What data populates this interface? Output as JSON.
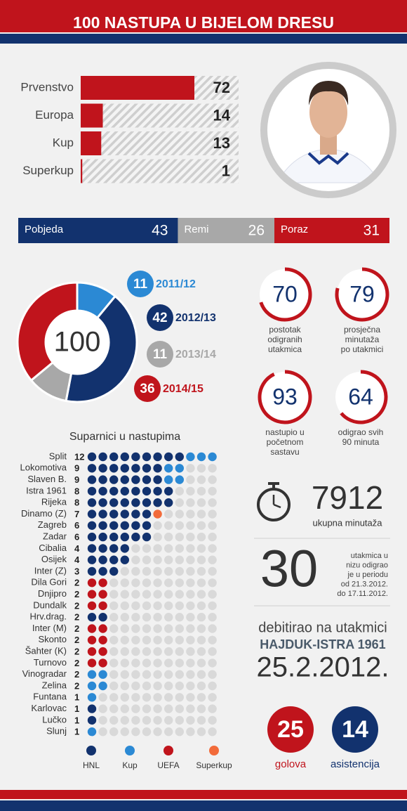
{
  "header": {
    "title": "100 NASTUPA U BIJELOM DRESU"
  },
  "competitions": {
    "type": "bar",
    "categories": [
      "Prvenstvo",
      "Europa",
      "Kup",
      "Superkup"
    ],
    "values": [
      72,
      14,
      13,
      1
    ],
    "color": "#c0141c"
  },
  "results": {
    "type": "stacked-bar",
    "categories": [
      "Pobjeda",
      "Remi",
      "Poraz"
    ],
    "values": [
      43,
      26,
      31
    ],
    "colors": [
      "#12326e",
      "#a8a8a8",
      "#c0141c"
    ]
  },
  "seasons": {
    "type": "donut",
    "total": 100,
    "categories": [
      "2011/12",
      "2012/13",
      "2013/14",
      "2014/15"
    ],
    "values": [
      11,
      42,
      11,
      36
    ],
    "colors": [
      "#2b89d4",
      "#12326e",
      "#a8a8a8",
      "#c0141c"
    ]
  },
  "gauges": [
    {
      "value": 70,
      "label_lines": [
        "postotak",
        "odigranih",
        "utakmica"
      ]
    },
    {
      "value": 79,
      "label_lines": [
        "prosječna",
        "minutaža",
        "po utakmici"
      ]
    },
    {
      "value": 93,
      "label_lines": [
        "nastupio u",
        "početnom",
        "sastavu"
      ]
    },
    {
      "value": 64,
      "label_lines": [
        "odigrao svih",
        "90 minuta"
      ]
    }
  ],
  "opponents": {
    "type": "dot-matrix",
    "title": "Suparnici u nastupima",
    "legend": {
      "names": [
        "HNL",
        "Kup",
        "UEFA",
        "Superkup"
      ],
      "colors": [
        "#12326e",
        "#2b89d4",
        "#c0141c",
        "#f26b3a"
      ]
    },
    "rows": [
      {
        "name": "Split",
        "total": 12,
        "counts": [
          9,
          3,
          0,
          0
        ]
      },
      {
        "name": "Lokomotiva",
        "total": 9,
        "counts": [
          7,
          2,
          0,
          0
        ]
      },
      {
        "name": "Slaven B.",
        "total": 9,
        "counts": [
          7,
          2,
          0,
          0
        ]
      },
      {
        "name": "Istra 1961",
        "total": 8,
        "counts": [
          8,
          0,
          0,
          0
        ]
      },
      {
        "name": "Rijeka",
        "total": 8,
        "counts": [
          8,
          0,
          0,
          0
        ]
      },
      {
        "name": "Dinamo (Z)",
        "total": 7,
        "counts": [
          6,
          0,
          0,
          1
        ]
      },
      {
        "name": "Zagreb",
        "total": 6,
        "counts": [
          6,
          0,
          0,
          0
        ]
      },
      {
        "name": "Zadar",
        "total": 6,
        "counts": [
          6,
          0,
          0,
          0
        ]
      },
      {
        "name": "Cibalia",
        "total": 4,
        "counts": [
          4,
          0,
          0,
          0
        ]
      },
      {
        "name": "Osijek",
        "total": 4,
        "counts": [
          4,
          0,
          0,
          0
        ]
      },
      {
        "name": "Inter (Z)",
        "total": 3,
        "counts": [
          3,
          0,
          0,
          0
        ]
      },
      {
        "name": "Dila Gori",
        "total": 2,
        "counts": [
          0,
          0,
          2,
          0
        ]
      },
      {
        "name": "Dnjipro",
        "total": 2,
        "counts": [
          0,
          0,
          2,
          0
        ]
      },
      {
        "name": "Dundalk",
        "total": 2,
        "counts": [
          0,
          0,
          2,
          0
        ]
      },
      {
        "name": "Hrv.drag.",
        "total": 2,
        "counts": [
          2,
          0,
          0,
          0
        ]
      },
      {
        "name": "Inter (M)",
        "total": 2,
        "counts": [
          0,
          0,
          2,
          0
        ]
      },
      {
        "name": "Skonto",
        "total": 2,
        "counts": [
          0,
          0,
          2,
          0
        ]
      },
      {
        "name": "Šahter (K)",
        "total": 2,
        "counts": [
          0,
          0,
          2,
          0
        ]
      },
      {
        "name": "Turnovo",
        "total": 2,
        "counts": [
          0,
          0,
          2,
          0
        ]
      },
      {
        "name": "Vinogradar",
        "total": 2,
        "counts": [
          0,
          2,
          0,
          0
        ]
      },
      {
        "name": "Zelina",
        "total": 2,
        "counts": [
          0,
          2,
          0,
          0
        ]
      },
      {
        "name": "Funtana",
        "total": 1,
        "counts": [
          0,
          1,
          0,
          0
        ]
      },
      {
        "name": "Karlovac",
        "total": 1,
        "counts": [
          1,
          0,
          0,
          0
        ]
      },
      {
        "name": "Lučko",
        "total": 1,
        "counts": [
          1,
          0,
          0,
          0
        ]
      },
      {
        "name": "Slunj",
        "total": 1,
        "counts": [
          0,
          1,
          0,
          0
        ]
      }
    ]
  },
  "minutes": {
    "value": 7912,
    "label": "ukupna minutaža"
  },
  "streak": {
    "value": 30,
    "text_lines": [
      "utakmica u",
      "nizu odigrao",
      "je u periodu",
      "od 21.3.2012.",
      "do 17.11.2012."
    ]
  },
  "debut": {
    "intro": "debitirao na utakmici",
    "match": "HAJDUK-ISTRA 1961",
    "date": "25.2.2012."
  },
  "goals": {
    "value": 25,
    "label": "golova",
    "color": "#c0141c"
  },
  "assists": {
    "value": 14,
    "label": "asistencija",
    "color": "#12326e"
  }
}
